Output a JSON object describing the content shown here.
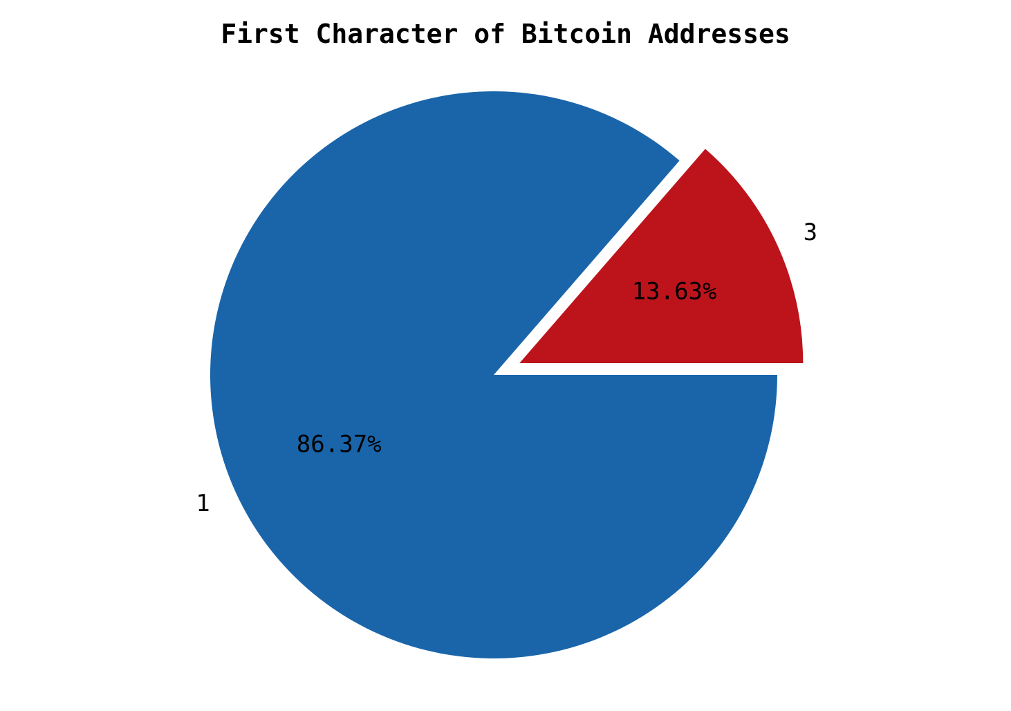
{
  "chart_data": {
    "type": "pie",
    "title": "First Character of Bitcoin Addresses",
    "categories": [
      "1",
      "3"
    ],
    "values": [
      86.37,
      13.63
    ],
    "value_labels": [
      "86.37%",
      "13.63%"
    ],
    "colors": [
      "#1a65aa",
      "#bd141c"
    ],
    "exploded": [
      false,
      true
    ],
    "start_angle_deg": 0,
    "direction": "clockwise",
    "legend": "none"
  }
}
